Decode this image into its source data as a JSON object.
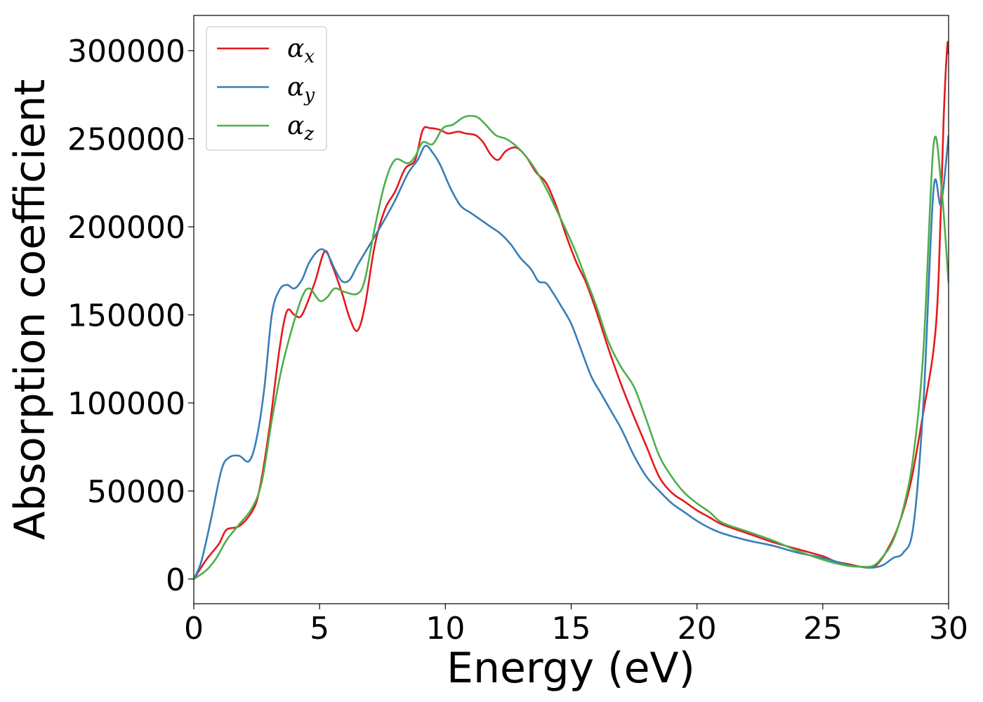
{
  "chart_data": {
    "type": "line",
    "xlabel": "Energy (eV)",
    "ylabel": "Absorption coefficient",
    "xlim": [
      0,
      30
    ],
    "ylim": [
      -14000,
      320000
    ],
    "xticks": [
      0,
      5,
      10,
      15,
      20,
      25,
      30
    ],
    "xtick_labels": [
      "0",
      "5",
      "10",
      "15",
      "20",
      "25",
      "30"
    ],
    "yticks": [
      0,
      50000,
      100000,
      150000,
      200000,
      250000,
      300000
    ],
    "ytick_labels": [
      "0",
      "50000",
      "100000",
      "150000",
      "200000",
      "250000",
      "300000"
    ],
    "grid": false,
    "legend_position": "upper-left",
    "series": [
      {
        "name": "α",
        "subscript": "x",
        "color": "#e41a1c",
        "points": [
          [
            0,
            0
          ],
          [
            0.5,
            11000
          ],
          [
            1,
            20000
          ],
          [
            1.3,
            28000
          ],
          [
            1.8,
            30000
          ],
          [
            2.3,
            38000
          ],
          [
            2.6,
            50000
          ],
          [
            3,
            85000
          ],
          [
            3.4,
            130000
          ],
          [
            3.7,
            152000
          ],
          [
            4,
            150000
          ],
          [
            4.3,
            150000
          ],
          [
            4.8,
            168000
          ],
          [
            5.2,
            186000
          ],
          [
            5.5,
            178000
          ],
          [
            5.9,
            162000
          ],
          [
            6.2,
            148000
          ],
          [
            6.5,
            141000
          ],
          [
            6.8,
            155000
          ],
          [
            7.2,
            190000
          ],
          [
            7.6,
            210000
          ],
          [
            8,
            220000
          ],
          [
            8.4,
            233000
          ],
          [
            8.8,
            238000
          ],
          [
            9.1,
            255000
          ],
          [
            9.4,
            256000
          ],
          [
            9.8,
            255000
          ],
          [
            10.1,
            253000
          ],
          [
            10.5,
            254000
          ],
          [
            10.8,
            253000
          ],
          [
            11.2,
            252000
          ],
          [
            11.5,
            248000
          ],
          [
            11.8,
            241000
          ],
          [
            12.1,
            238000
          ],
          [
            12.4,
            243000
          ],
          [
            12.8,
            245000
          ],
          [
            13.2,
            240000
          ],
          [
            13.6,
            231000
          ],
          [
            14,
            225000
          ],
          [
            14.4,
            212000
          ],
          [
            14.8,
            195000
          ],
          [
            15.2,
            180000
          ],
          [
            15.6,
            168000
          ],
          [
            16,
            152000
          ],
          [
            16.5,
            130000
          ],
          [
            17,
            110000
          ],
          [
            17.5,
            92000
          ],
          [
            18,
            75000
          ],
          [
            18.5,
            58000
          ],
          [
            19,
            49000
          ],
          [
            19.5,
            44000
          ],
          [
            20,
            39000
          ],
          [
            20.5,
            35000
          ],
          [
            21,
            31000
          ],
          [
            22,
            26000
          ],
          [
            23,
            21000
          ],
          [
            24,
            17000
          ],
          [
            25,
            13000
          ],
          [
            25.5,
            10000
          ],
          [
            26,
            8500
          ],
          [
            26.5,
            7000
          ],
          [
            26.8,
            6500
          ],
          [
            27.1,
            7500
          ],
          [
            27.5,
            15000
          ],
          [
            28,
            30000
          ],
          [
            28.5,
            55000
          ],
          [
            29,
            95000
          ],
          [
            29.4,
            130000
          ],
          [
            29.6,
            170000
          ],
          [
            29.8,
            260000
          ],
          [
            29.95,
            303000
          ],
          [
            30,
            298000
          ]
        ]
      },
      {
        "name": "α",
        "subscript": "y",
        "color": "#377eb8",
        "points": [
          [
            0,
            0
          ],
          [
            0.3,
            10000
          ],
          [
            0.7,
            35000
          ],
          [
            1.1,
            62000
          ],
          [
            1.4,
            69000
          ],
          [
            1.8,
            70000
          ],
          [
            2.2,
            67000
          ],
          [
            2.5,
            80000
          ],
          [
            2.8,
            108000
          ],
          [
            3.1,
            150000
          ],
          [
            3.4,
            164000
          ],
          [
            3.7,
            167000
          ],
          [
            4,
            165000
          ],
          [
            4.3,
            170000
          ],
          [
            4.6,
            180000
          ],
          [
            5,
            187000
          ],
          [
            5.3,
            185000
          ],
          [
            5.6,
            176000
          ],
          [
            5.9,
            169000
          ],
          [
            6.2,
            170000
          ],
          [
            6.5,
            178000
          ],
          [
            7,
            190000
          ],
          [
            7.5,
            202000
          ],
          [
            8,
            215000
          ],
          [
            8.5,
            230000
          ],
          [
            8.9,
            238000
          ],
          [
            9.2,
            246000
          ],
          [
            9.5,
            242000
          ],
          [
            9.8,
            235000
          ],
          [
            10.2,
            222000
          ],
          [
            10.6,
            212000
          ],
          [
            11,
            208000
          ],
          [
            11.4,
            204000
          ],
          [
            11.8,
            200000
          ],
          [
            12.2,
            196000
          ],
          [
            12.6,
            190000
          ],
          [
            13,
            182000
          ],
          [
            13.4,
            176000
          ],
          [
            13.7,
            169000
          ],
          [
            14,
            168000
          ],
          [
            14.3,
            162000
          ],
          [
            14.6,
            155000
          ],
          [
            15,
            145000
          ],
          [
            15.4,
            130000
          ],
          [
            15.8,
            115000
          ],
          [
            16.2,
            105000
          ],
          [
            16.6,
            95000
          ],
          [
            17,
            85000
          ],
          [
            17.5,
            70000
          ],
          [
            18,
            58000
          ],
          [
            18.5,
            50000
          ],
          [
            19,
            43000
          ],
          [
            19.5,
            38000
          ],
          [
            20,
            33000
          ],
          [
            20.5,
            29000
          ],
          [
            21,
            26000
          ],
          [
            22,
            22000
          ],
          [
            23,
            19000
          ],
          [
            24,
            15000
          ],
          [
            25,
            12000
          ],
          [
            26,
            8000
          ],
          [
            26.5,
            7000
          ],
          [
            27,
            6500
          ],
          [
            27.4,
            8000
          ],
          [
            27.8,
            12000
          ],
          [
            28.2,
            15000
          ],
          [
            28.6,
            30000
          ],
          [
            29,
            100000
          ],
          [
            29.4,
            221000
          ],
          [
            29.7,
            213000
          ],
          [
            30,
            252000
          ]
        ]
      },
      {
        "name": "α",
        "subscript": "z",
        "color": "#4daf4a",
        "points": [
          [
            0,
            0
          ],
          [
            0.5,
            5000
          ],
          [
            0.9,
            12000
          ],
          [
            1.3,
            22000
          ],
          [
            1.8,
            31000
          ],
          [
            2.3,
            40000
          ],
          [
            2.7,
            55000
          ],
          [
            3.1,
            90000
          ],
          [
            3.5,
            120000
          ],
          [
            3.9,
            142000
          ],
          [
            4.3,
            160000
          ],
          [
            4.6,
            165000
          ],
          [
            5,
            158000
          ],
          [
            5.3,
            160000
          ],
          [
            5.6,
            165000
          ],
          [
            6,
            163000
          ],
          [
            6.5,
            162000
          ],
          [
            6.8,
            170000
          ],
          [
            7.2,
            200000
          ],
          [
            7.6,
            225000
          ],
          [
            8,
            238000
          ],
          [
            8.5,
            236000
          ],
          [
            8.8,
            240000
          ],
          [
            9.1,
            248000
          ],
          [
            9.5,
            247000
          ],
          [
            9.9,
            256000
          ],
          [
            10.3,
            258000
          ],
          [
            10.7,
            262000
          ],
          [
            11,
            263000
          ],
          [
            11.3,
            262000
          ],
          [
            11.6,
            258000
          ],
          [
            12,
            252000
          ],
          [
            12.4,
            250000
          ],
          [
            12.8,
            246000
          ],
          [
            13.2,
            240000
          ],
          [
            13.6,
            232000
          ],
          [
            14,
            222000
          ],
          [
            14.4,
            210000
          ],
          [
            14.8,
            198000
          ],
          [
            15.2,
            185000
          ],
          [
            15.6,
            170000
          ],
          [
            16,
            155000
          ],
          [
            16.5,
            134000
          ],
          [
            17,
            120000
          ],
          [
            17.5,
            109000
          ],
          [
            18,
            90000
          ],
          [
            18.5,
            70000
          ],
          [
            19,
            58000
          ],
          [
            19.5,
            49000
          ],
          [
            20,
            43000
          ],
          [
            20.5,
            38000
          ],
          [
            21,
            32000
          ],
          [
            22,
            27000
          ],
          [
            23,
            22000
          ],
          [
            24,
            16000
          ],
          [
            25,
            11000
          ],
          [
            25.5,
            9000
          ],
          [
            26,
            7500
          ],
          [
            26.5,
            7000
          ],
          [
            27,
            7500
          ],
          [
            27.4,
            13000
          ],
          [
            27.8,
            22000
          ],
          [
            28.2,
            40000
          ],
          [
            28.6,
            70000
          ],
          [
            29,
            130000
          ],
          [
            29.4,
            246000
          ],
          [
            29.7,
            225000
          ],
          [
            30,
            168000
          ]
        ]
      }
    ]
  }
}
